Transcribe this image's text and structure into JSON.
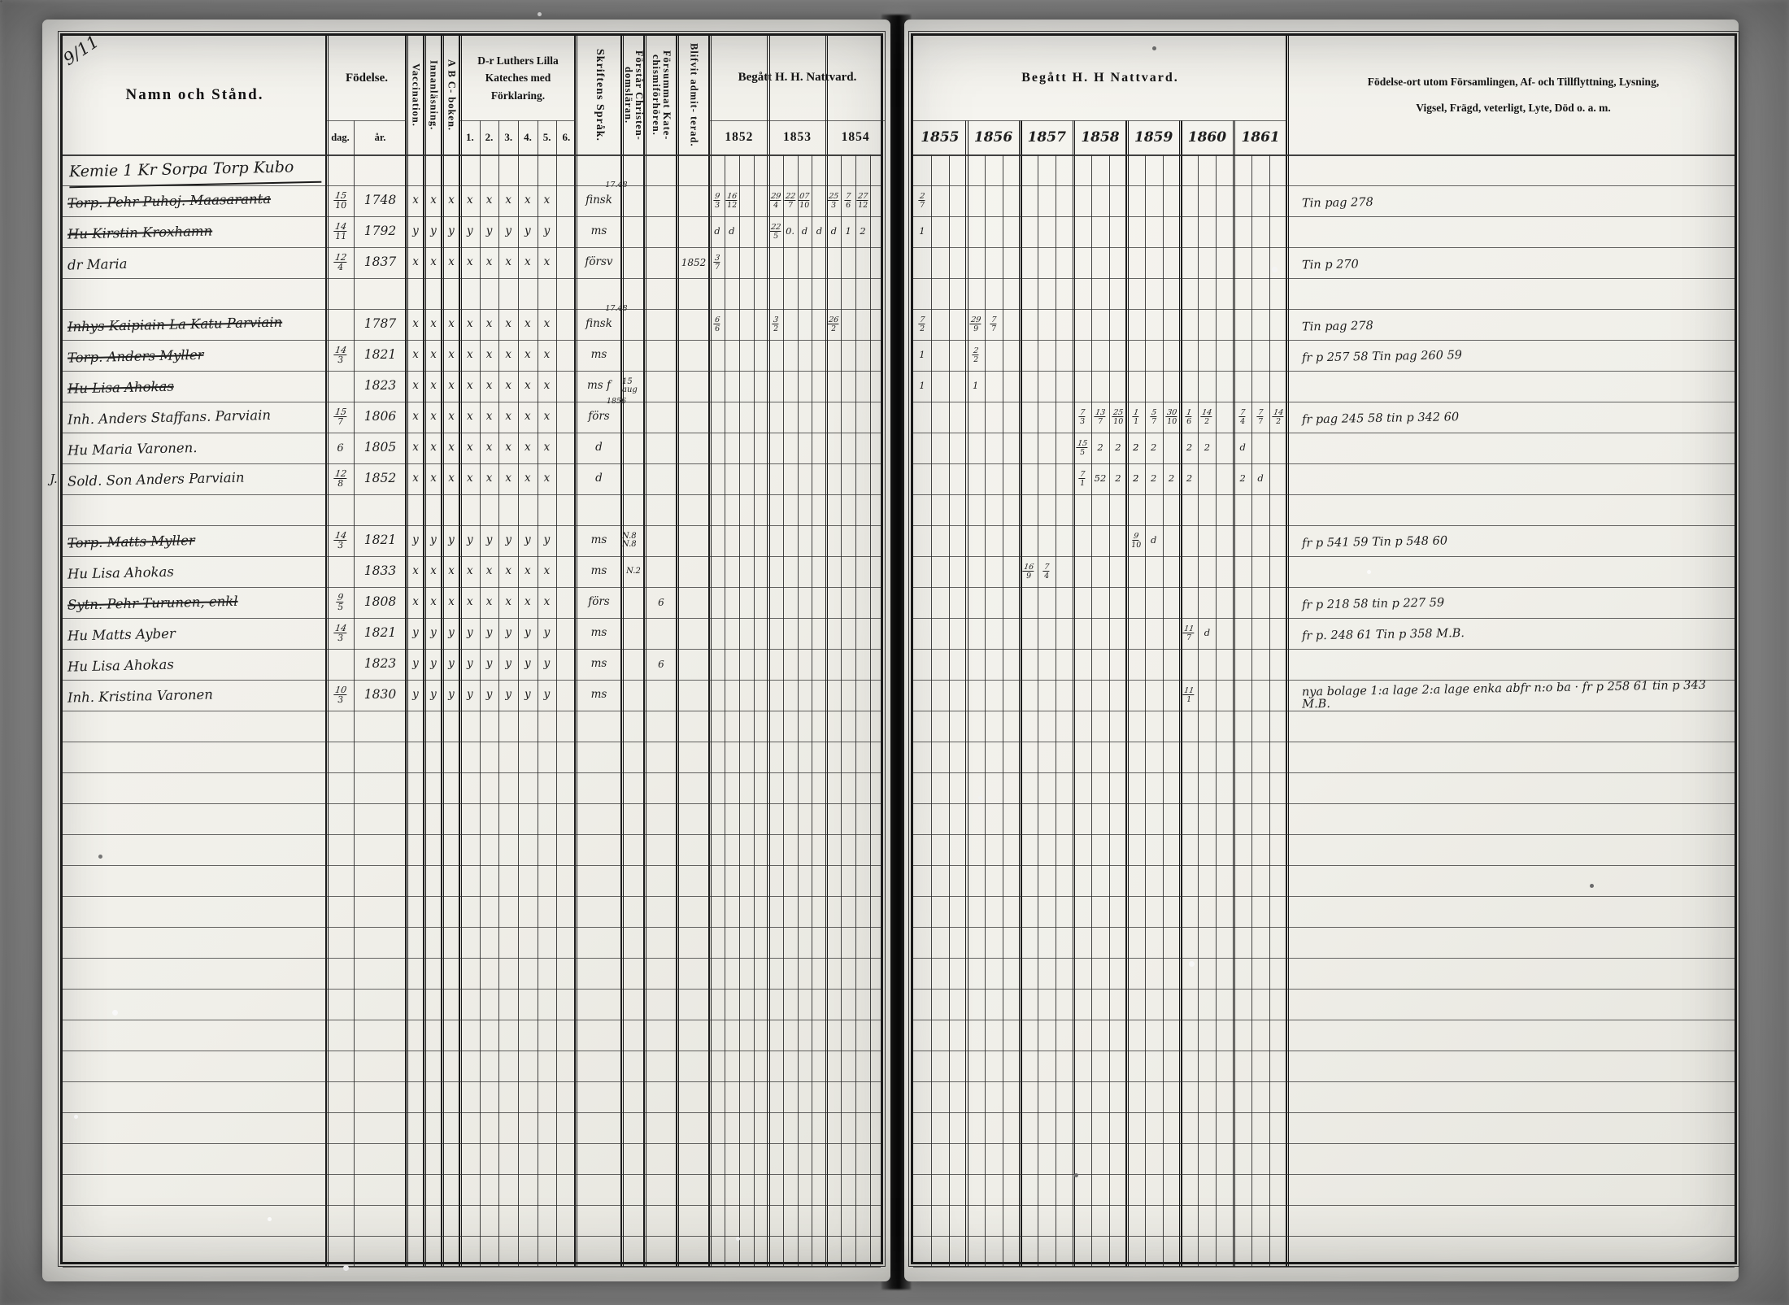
{
  "scan": {
    "page_corner_mark": "9/11"
  },
  "left_page": {
    "header": {
      "name_label": "Namn och Stånd.",
      "birth_label": "Födelse.",
      "birth_day": "dag.",
      "birth_year": "år.",
      "vaccination": "Vaccination.",
      "reading": "Innanläsning.",
      "abc_book": "A B C- boken.",
      "catechism": "D-r Luthers Lilla Kateches med Förklaring.",
      "catechism_cols": [
        "1.",
        "2.",
        "3.",
        "4.",
        "5.",
        "6."
      ],
      "script_language": "Skriftens Språk.",
      "understands": "Förstår Christen- domsläran.",
      "missed": "Försummat Kate- chismiförhören.",
      "admitted": "Blifvit admit- terad.",
      "communion": "Begått H. H. Nattvard.",
      "years": [
        "1852",
        "1853",
        "1854"
      ]
    }
  },
  "right_page": {
    "header": {
      "communion": "Begått H. H Nattvard.",
      "years": [
        "1855",
        "1856",
        "1857",
        "1858",
        "1859",
        "1860",
        "1861"
      ],
      "notes_line1": "Födelse-ort utom Församlingen, Af- och Tillflyttning, Lysning,",
      "notes_line2": "Vigsel, Frägd, veterligt, Lyte, Död o. a. m."
    }
  },
  "rows": [
    {
      "type": "heading",
      "name": "Kemie 1 Kr Sorpa Torp Kubo"
    },
    {
      "name": "Torp. Pehr Puhoj. Maasaranta",
      "struck": true,
      "dag": "15/10",
      "ar": "1748",
      "marks": "xxxxxxxx",
      "sprak": "finsk",
      "sprak_note": "17.48",
      "n1852": [
        "9/3",
        "16/12"
      ],
      "n1853": [
        "29/4",
        "22/7",
        "07/10"
      ],
      "n1854": [
        "25/3",
        "7/6",
        "27/12"
      ],
      "r1855": [
        "2/7"
      ],
      "note": "Tin pag 278"
    },
    {
      "name": "Hu Kirstin Kroxhamn",
      "struck": true,
      "dag": "14/11",
      "ar": "1792",
      "marks": "yyyyyyyy",
      "sprak": "ms",
      "n1852": [
        "d",
        "d"
      ],
      "n1853": [
        "22/5",
        "0.",
        "d",
        "d"
      ],
      "n1854": [
        "d",
        "1",
        "2"
      ],
      "r1855": [
        "1"
      ],
      "note": ""
    },
    {
      "name": "dr Maria",
      "dag": "12/4",
      "ar": "1837",
      "marks": "xxxxxxxx",
      "sprak": "försv",
      "blifvit": "1852",
      "n1852": [
        "3/7"
      ],
      "note": "Tin p 270"
    },
    {},
    {
      "name": "Inhys Kaipiain La Katu Parviain",
      "struck": true,
      "ar": "1787",
      "marks": "xxxxxxxx",
      "sprak": "finsk",
      "sprak_note": "17.48",
      "n1852": [
        "6/6"
      ],
      "n1853": [
        "3/2"
      ],
      "n1854": [
        "26/2"
      ],
      "r1855": [
        "7/2"
      ],
      "r1856": [
        "29/9",
        "7/7"
      ],
      "note": "Tin pag 278"
    },
    {
      "name": "Torp. Anders Myller",
      "struck": true,
      "dag": "14/3",
      "ar": "1821",
      "marks": "xxxxxxxx",
      "sprak": "ms",
      "r1855": [
        "1"
      ],
      "r1856": [
        "2/2"
      ],
      "note": "fr p 257 58  Tin pag 260 59"
    },
    {
      "name": "Hu Lisa Ahokas",
      "struck": true,
      "ar": "1823",
      "marks": "xxxxxxxx",
      "sprak": "ms f",
      "forstar": "15 aug",
      "r1855": [
        "1"
      ],
      "r1856": [
        "1"
      ],
      "note": ""
    },
    {
      "name": "Inh. Anders Staffans. Parviain",
      "dag": "15/7",
      "ar": "1806",
      "marks": "xxxxxxxx",
      "sprak": "förs",
      "sprak_note": "1856",
      "r1858": [
        "7/3",
        "13/7",
        "25/10"
      ],
      "r1859": [
        "1/1",
        "5/7",
        "30/10"
      ],
      "r1860": [
        "1/6",
        "14/2"
      ],
      "r1861": [
        "7/4",
        "7/7",
        "14/2"
      ],
      "note": "fr pag 245 58  tin p 342 60"
    },
    {
      "name": "Hu Maria Varonen.",
      "dag": "6",
      "ar": "1805",
      "marks": "xxxxxxxx",
      "sprak": "d",
      "r1858": [
        "15/5",
        "2",
        "2",
        "2"
      ],
      "r1859": [
        "2",
        "2"
      ],
      "r1860": [
        "2",
        "2"
      ],
      "r1861": [
        "d"
      ],
      "note": ""
    },
    {
      "margin": "J.",
      "name": "Sold. Son Anders Parviain",
      "dag": "12/8",
      "ar": "1852",
      "marks": "xxxxxxxx",
      "sprak": "d",
      "r1858": [
        "7/1",
        "52",
        "2",
        "2"
      ],
      "r1859": [
        "2",
        "2",
        "2"
      ],
      "r1860": [
        "2"
      ],
      "r1861": [
        "2",
        "d"
      ],
      "note": ""
    },
    {},
    {
      "name": "Torp. Matts Myller",
      "struck": true,
      "dag": "14/3",
      "ar": "1821",
      "marks": "yyyyyyyy",
      "sprak": "ms",
      "forstar": "N.8  N.8",
      "r1859": [
        "9/10",
        "d"
      ],
      "note": "fr p 541 59  Tin p 548 60"
    },
    {
      "name": "Hu Lisa Ahokas",
      "ar": "1833",
      "marks": "xxxxxxxx",
      "sprak": "ms",
      "forstar": "N.2",
      "r1857": [
        "16/9",
        "7/4"
      ],
      "note": ""
    },
    {
      "name": "Sytn. Pehr Turunen, enkl",
      "struck": true,
      "dag": "9/5",
      "ar": "1808",
      "marks": "xxxxxxxx",
      "sprak": "förs",
      "forsummat": "6",
      "note": "fr p 218 58  tin p 227 59"
    },
    {
      "name": "Hu Matts Ayber",
      "dag": "14/3",
      "ar": "1821",
      "marks": "yyyyyyyy",
      "sprak": "ms",
      "r1860": [
        "11/7",
        "d"
      ],
      "note": "fr p. 248 61  Tin p 358 M.B."
    },
    {
      "name": "Hu Lisa Ahokas",
      "ar": "1823",
      "marks": "yyyyyyyy",
      "sprak": "ms",
      "forsummat": "6",
      "note": ""
    },
    {
      "name": "Inh. Kristina Varonen",
      "dag": "10/3",
      "ar": "1830",
      "marks": "yyyyyyyy",
      "sprak": "ms",
      "r1860": [
        "11/1"
      ],
      "note": "nya bolage 1:a lage 2:a lage enka abfr n:o ba · fr p 258 61 tin p 343 M.B."
    }
  ]
}
